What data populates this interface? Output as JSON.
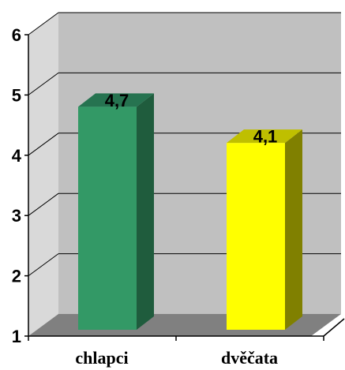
{
  "chart_data": {
    "type": "bar",
    "categories": [
      "chlapci",
      "dvěčata"
    ],
    "values": [
      4.7,
      4.1
    ],
    "value_labels": [
      "4,7",
      "4,1"
    ],
    "ylim": [
      1,
      6
    ],
    "yticks": [
      "1",
      "2",
      "3",
      "4",
      "5",
      "6"
    ],
    "grid": true,
    "legend": "none",
    "colors": {
      "bar_front": [
        "#339966",
        "#ffff00"
      ],
      "bar_side": [
        "#1f5c3d",
        "#808000"
      ],
      "bar_top": [
        "#267350",
        "#bfbf00"
      ],
      "wall": "#c0c0c0",
      "floor": "#808080"
    }
  }
}
